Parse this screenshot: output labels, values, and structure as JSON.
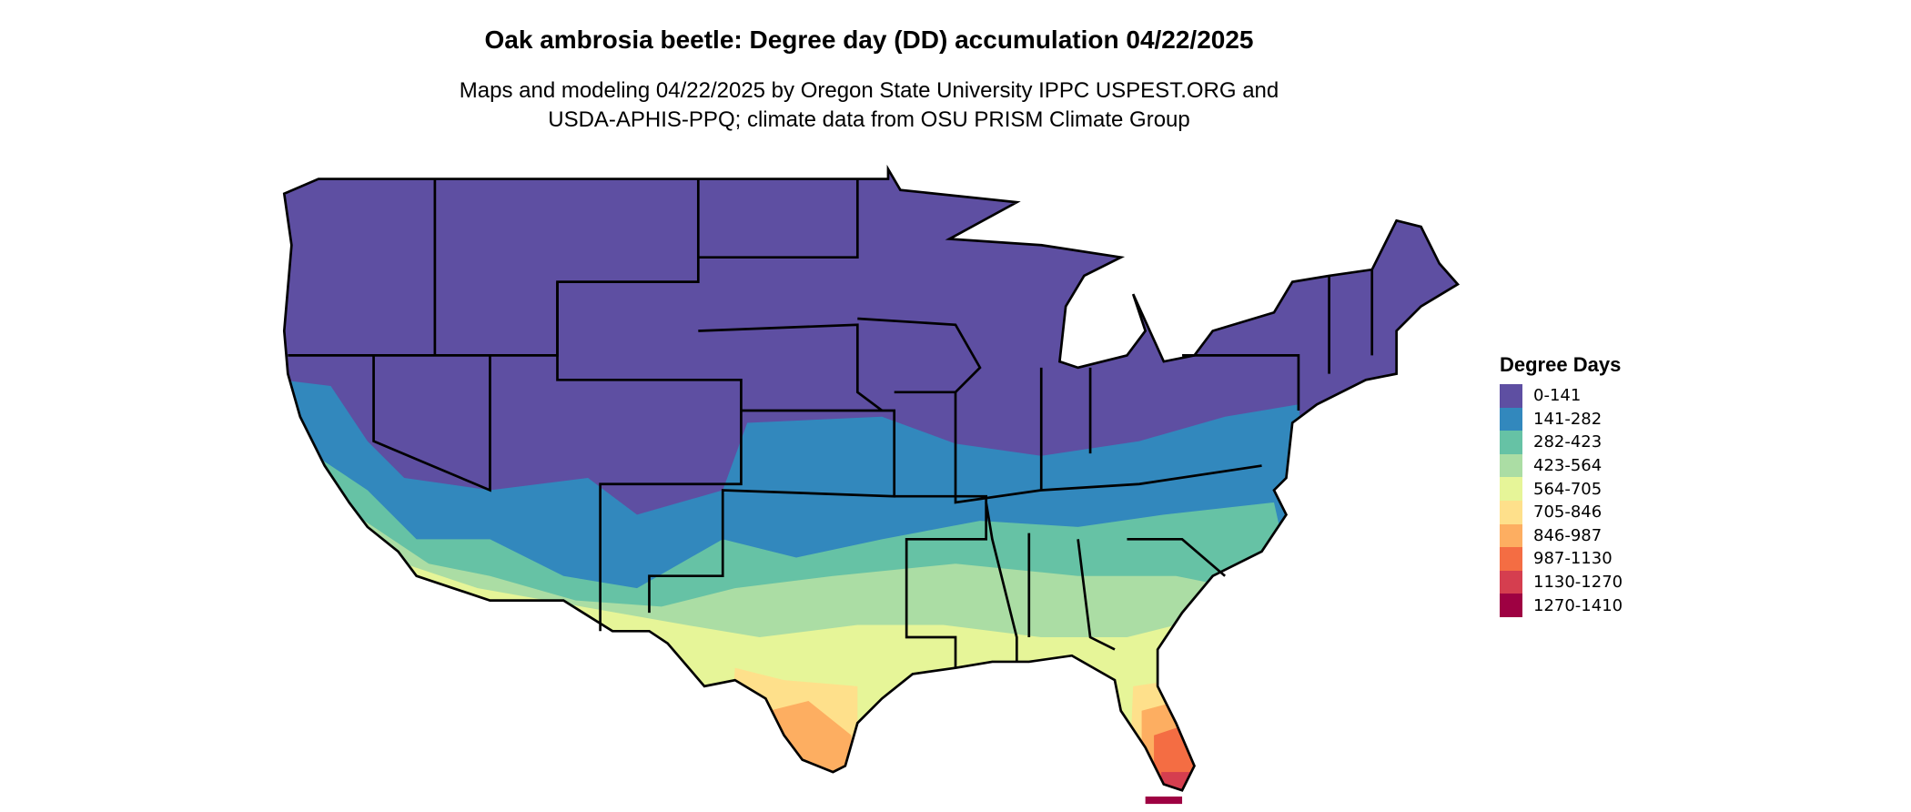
{
  "title": "Oak ambrosia beetle: Degree day (DD) accumulation 04/22/2025",
  "subtitle_line1": "Maps and modeling 04/22/2025 by Oregon State University IPPC USPEST.ORG and",
  "subtitle_line2": "USDA-APHIS-PPQ; climate data from OSU PRISM Climate Group",
  "legend": {
    "title": "Degree Days",
    "items": [
      {
        "label": "0-141",
        "color": "#5E4FA2"
      },
      {
        "label": "141-282",
        "color": "#3288BD"
      },
      {
        "label": "282-423",
        "color": "#66C2A5"
      },
      {
        "label": "423-564",
        "color": "#ABDDA4"
      },
      {
        "label": "564-705",
        "color": "#E6F598"
      },
      {
        "label": "705-846",
        "color": "#FEE08B"
      },
      {
        "label": "846-987",
        "color": "#FDAE61"
      },
      {
        "label": "987-1130",
        "color": "#F46D43"
      },
      {
        "label": "1130-1270",
        "color": "#D53E4F"
      },
      {
        "label": "1270-1410",
        "color": "#9E0142"
      }
    ]
  }
}
